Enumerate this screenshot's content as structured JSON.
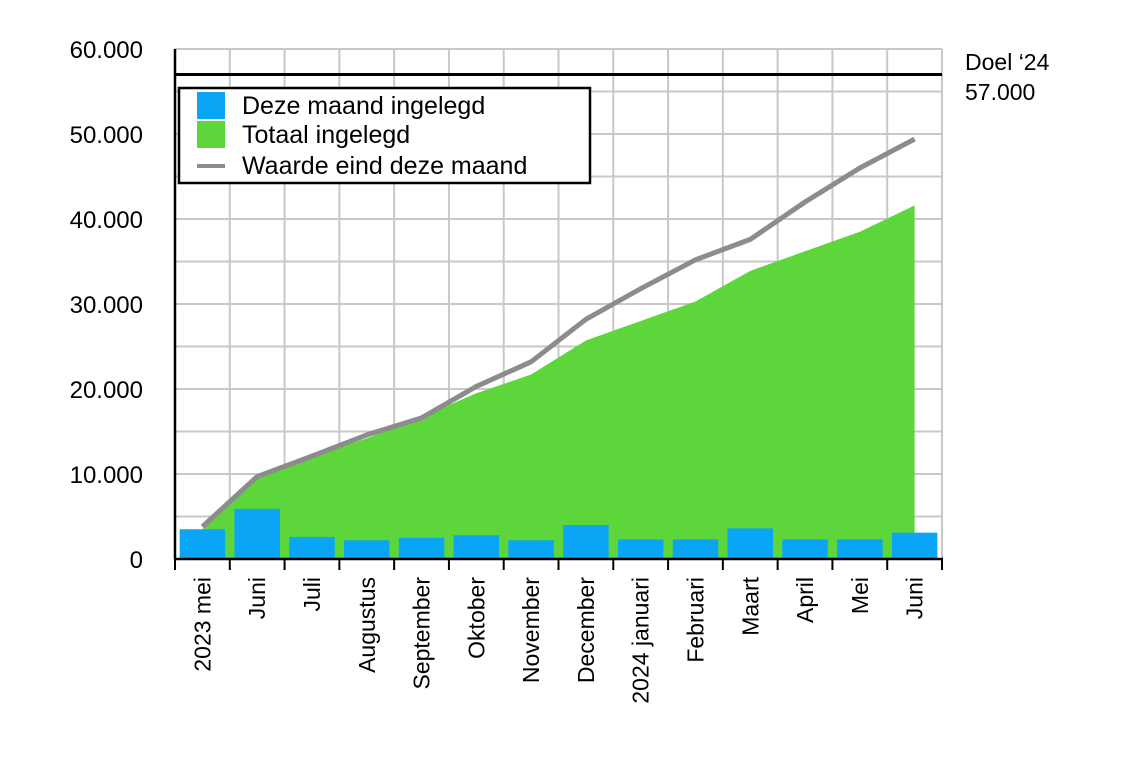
{
  "chart_data": {
    "type": "bar+area+line",
    "categories": [
      "2023 mei",
      "Juni",
      "Juli",
      "Augustus",
      "September",
      "Oktober",
      "November",
      "December",
      "2024 januari",
      "Februari",
      "Maart",
      "April",
      "Mei",
      "Juni"
    ],
    "series": [
      {
        "name": "Deze maand ingelegd",
        "type": "bar",
        "color": "#0aa5f5",
        "values": [
          3500,
          5900,
          2600,
          2200,
          2500,
          2800,
          2200,
          4000,
          2300,
          2300,
          3600,
          2300,
          2300,
          3100
        ]
      },
      {
        "name": "Totaal ingelegd",
        "type": "area",
        "color": "#5cd63a",
        "values": [
          3500,
          9400,
          12000,
          14200,
          16700,
          19500,
          21700,
          25700,
          28000,
          30300,
          33900,
          36200,
          38500,
          41600
        ]
      },
      {
        "name": "Waarde eind deze maand",
        "type": "line",
        "color": "#8c8c8c",
        "values": [
          3800,
          9700,
          12100,
          14600,
          16600,
          20300,
          23200,
          28200,
          31800,
          35200,
          37600,
          42000,
          46000,
          49400
        ]
      }
    ],
    "goal": {
      "value": 57000,
      "label_line1": "Doel ‘24",
      "label_line2": "57.000"
    },
    "yticks": [
      "0",
      "10.000",
      "20.000",
      "30.000",
      "40.000",
      "50.000",
      "60.000"
    ],
    "ylim": [
      0,
      60000
    ],
    "grid": true,
    "legend_position": "top-left"
  }
}
